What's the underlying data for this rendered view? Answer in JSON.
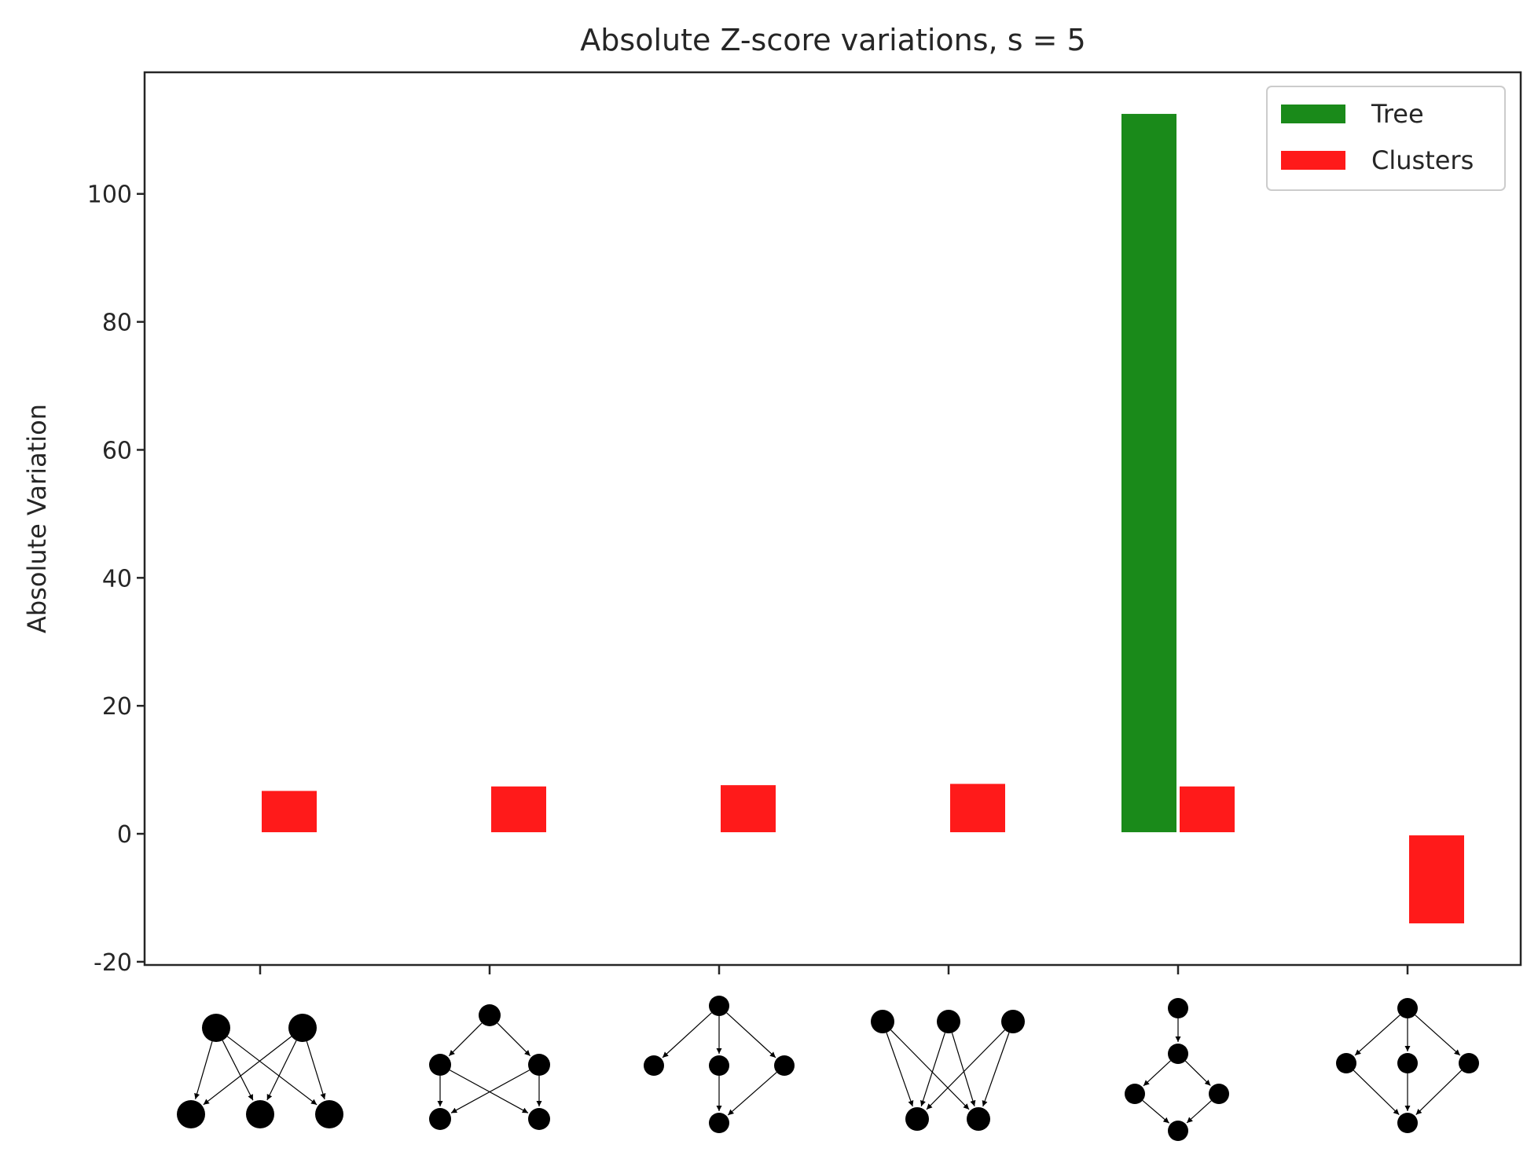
{
  "chart_data": {
    "type": "bar",
    "title": "Absolute Z-score variations, s = 5",
    "xlabel": "",
    "ylabel": "Absolute Variation",
    "ylim": [
      -20.5,
      119
    ],
    "yticks": [
      -20,
      0,
      20,
      40,
      60,
      80,
      100
    ],
    "categories": [
      "motif-1",
      "motif-2",
      "motif-3",
      "motif-4",
      "motif-5",
      "motif-6"
    ],
    "series": [
      {
        "name": "Tree",
        "color": "#1a8a1a",
        "values": [
          0,
          0,
          0,
          0,
          112.5,
          0
        ]
      },
      {
        "name": "Clusters",
        "color": "#ff1a1a",
        "values": [
          6.7,
          7.4,
          7.6,
          7.8,
          7.4,
          -14
        ]
      }
    ],
    "legend": {
      "position": "top-right"
    },
    "grid": false,
    "x_tick_labels_are_graph_glyphs": true
  }
}
